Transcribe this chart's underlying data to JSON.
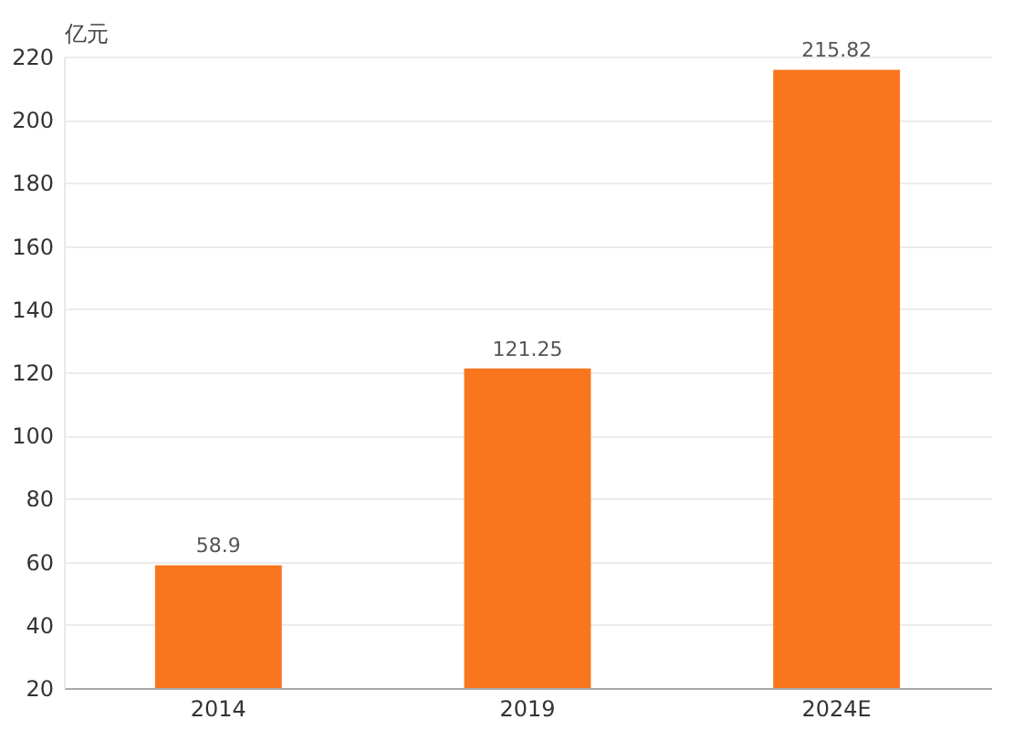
{
  "chart_data": {
    "type": "bar",
    "ylabel": "亿元",
    "categories": [
      "2014",
      "2019",
      "2024E"
    ],
    "values": [
      58.9,
      121.25,
      215.82
    ],
    "color": "#f9761f",
    "ylim": [
      20,
      220
    ],
    "yticks": [
      20,
      40,
      60,
      80,
      100,
      120,
      140,
      160,
      180,
      200,
      220
    ],
    "grid": "y",
    "data_labels": true
  }
}
